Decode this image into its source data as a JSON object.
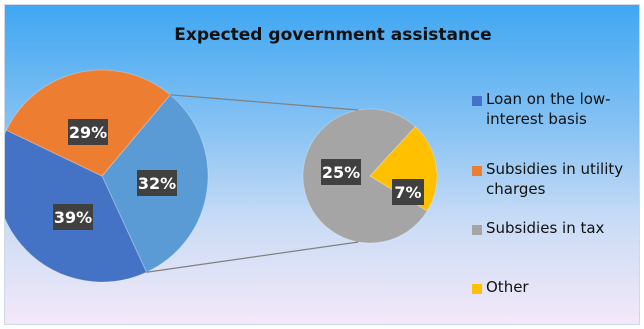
{
  "chart_data": {
    "type": "pie",
    "title": "Expected government assistance",
    "subtype": "pie-of-pie",
    "slices": [
      {
        "label": "Loan on the low-interest basis",
        "value": 39,
        "display": "39%",
        "color": "#4472c4"
      },
      {
        "label": "Subsidies in utility charges",
        "value": 29,
        "display": "29%",
        "color": "#ed7d31"
      },
      {
        "label": "Subsidies in tax",
        "value": 25,
        "display": "25%",
        "color": "#a5a5a5"
      },
      {
        "label": "Other",
        "value": 7,
        "display": "7%",
        "color": "#ffc000"
      }
    ],
    "combined_slice": {
      "display": "32%",
      "value": 32,
      "color": "#5b9bd5"
    },
    "legend": [
      {
        "label_line1": "Loan on the low-",
        "label_line2": "interest basis",
        "color": "#4472c4"
      },
      {
        "label_line1": "Subsidies in utility",
        "label_line2": "charges",
        "color": "#ed7d31"
      },
      {
        "label_line1": "Subsidies in tax",
        "label_line2": "",
        "color": "#a5a5a5"
      },
      {
        "label_line1": "Other",
        "label_line2": "",
        "color": "#ffc000"
      }
    ],
    "legend_position": "right",
    "label_box_color": "#404040"
  }
}
